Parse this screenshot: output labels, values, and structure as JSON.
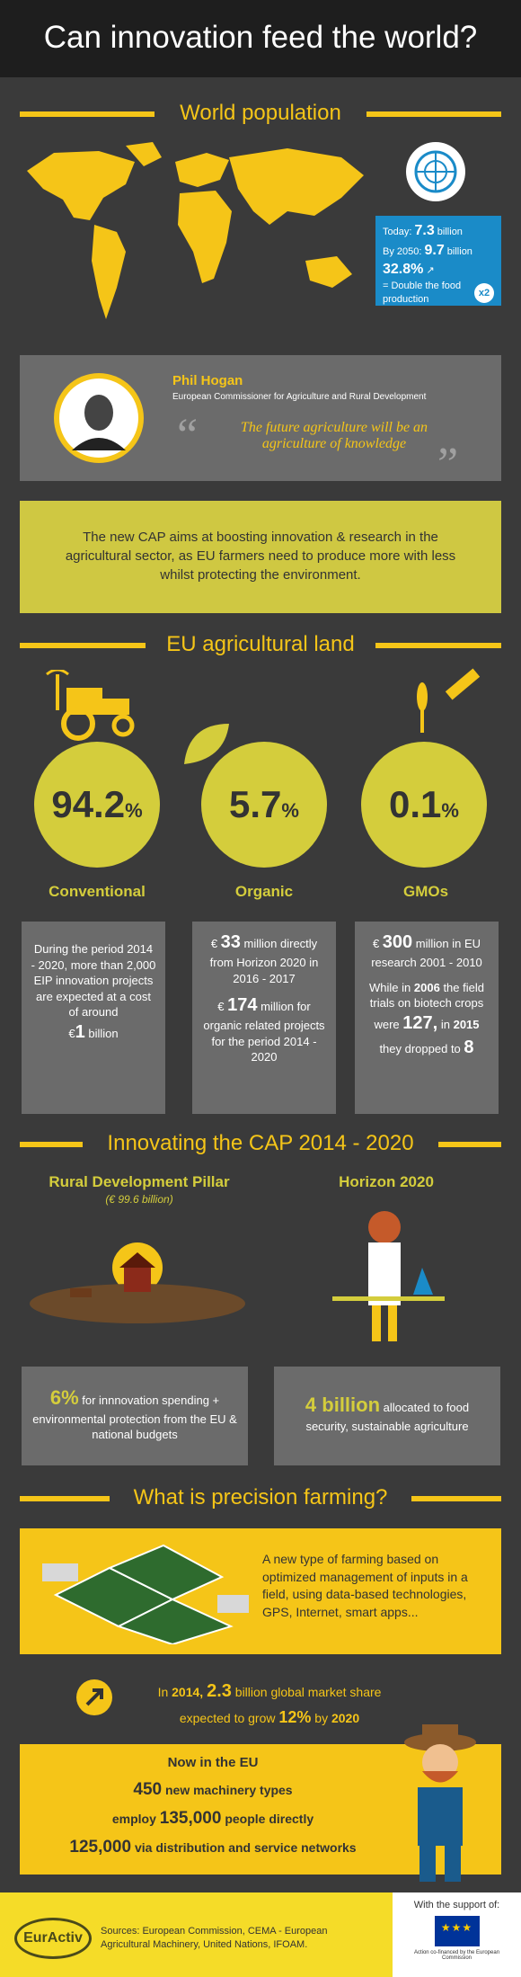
{
  "title": "Can innovation feed the world?",
  "sections": {
    "population": "World population",
    "land": "EU agricultural land",
    "cap": "Innovating the CAP 2014 - 2020",
    "precision": "What is precision farming?"
  },
  "population": {
    "today_label": "Today:",
    "today_value": "7.3",
    "today_unit": "billion",
    "y2050_label": "By 2050:",
    "y2050_value": "9.7",
    "y2050_unit": "billion",
    "growth": "32.8%",
    "double_label": "= Double the food production",
    "badge": "x2"
  },
  "quote": {
    "name": "Phil Hogan",
    "role": "European Commissioner for Agriculture  and Rural Development",
    "text": "The future agriculture will be an agriculture of knowledge"
  },
  "cap_text": "The new CAP aims at boosting innovation & research in the agricultural sector, as EU farmers need to produce more with less whilst protecting the environment.",
  "land": {
    "conventional": {
      "value": "94.2",
      "unit": "%",
      "label": "Conventional",
      "desc": "During the period 2014 - 2020, more than 2,000 EIP innovation projects are expected at a cost of around",
      "amount_prefix": "€",
      "amount": "1",
      "amount_unit": "billion"
    },
    "organic": {
      "value": "5.7",
      "unit": "%",
      "label": "Organic",
      "desc1_prefix": "€",
      "desc1_amount": "33",
      "desc1": "million directly from Horizon 2020 in 2016 - 2017",
      "desc2_prefix": "€",
      "desc2_amount": "174",
      "desc2": "million for organic related projects for the period 2014 - 2020"
    },
    "gmos": {
      "value": "0.1",
      "unit": "%",
      "label": "GMOs",
      "desc1_prefix": "€",
      "desc1_amount": "300",
      "desc1": "million in EU research 2001 - 2010",
      "desc2a": "While in",
      "desc2_year": "2006",
      "desc2b": "the field trials on biotech crops were",
      "desc2_n": "127,",
      "desc2c": "in",
      "desc2_year2": "2015",
      "desc2d": "they dropped to",
      "desc2_n2": "8"
    }
  },
  "cap": {
    "rural_title": "Rural Development Pillar",
    "rural_sub": "(€ 99.6 billion)",
    "rural_value": "6%",
    "rural_text": "for innnovation spending + environmental protection from the EU & national budgets",
    "horizon_title": "Horizon 2020",
    "horizon_value": "4 billion",
    "horizon_text": "allocated to food security, sustainable agriculture"
  },
  "precision": {
    "definition": "A new type of farming based on optimized management of inputs in a field, using data-based technologies, GPS, Internet, smart apps...",
    "market_a": "In",
    "market_year": "2014,",
    "market_value": "2.3",
    "market_b": "billion global market share",
    "market_c": "expected to grow",
    "market_pct": "12%",
    "market_d": "by",
    "market_year2": "2020",
    "now_title": "Now in the EU",
    "now_1_num": "450",
    "now_1_text": "new machinery types",
    "now_2_pre": "employ",
    "now_2_num": "135,000",
    "now_2_text": "people directly",
    "now_3_num": "125,000",
    "now_3_text": "via distribution and service networks"
  },
  "footer": {
    "logo": "EurActiv",
    "sources": "Sources: European Commission, CEMA - European Agricultural Machinery, United Nations, IFOAM.",
    "support": "With the support of:",
    "support_caption": "Action co-financed by the European Commission"
  },
  "colors": {
    "yellow": "#f5c518",
    "olive": "#d4cd3c",
    "grey": "#6b6b6b",
    "dark": "#3a3a3a",
    "blue": "#1a8bc8"
  }
}
